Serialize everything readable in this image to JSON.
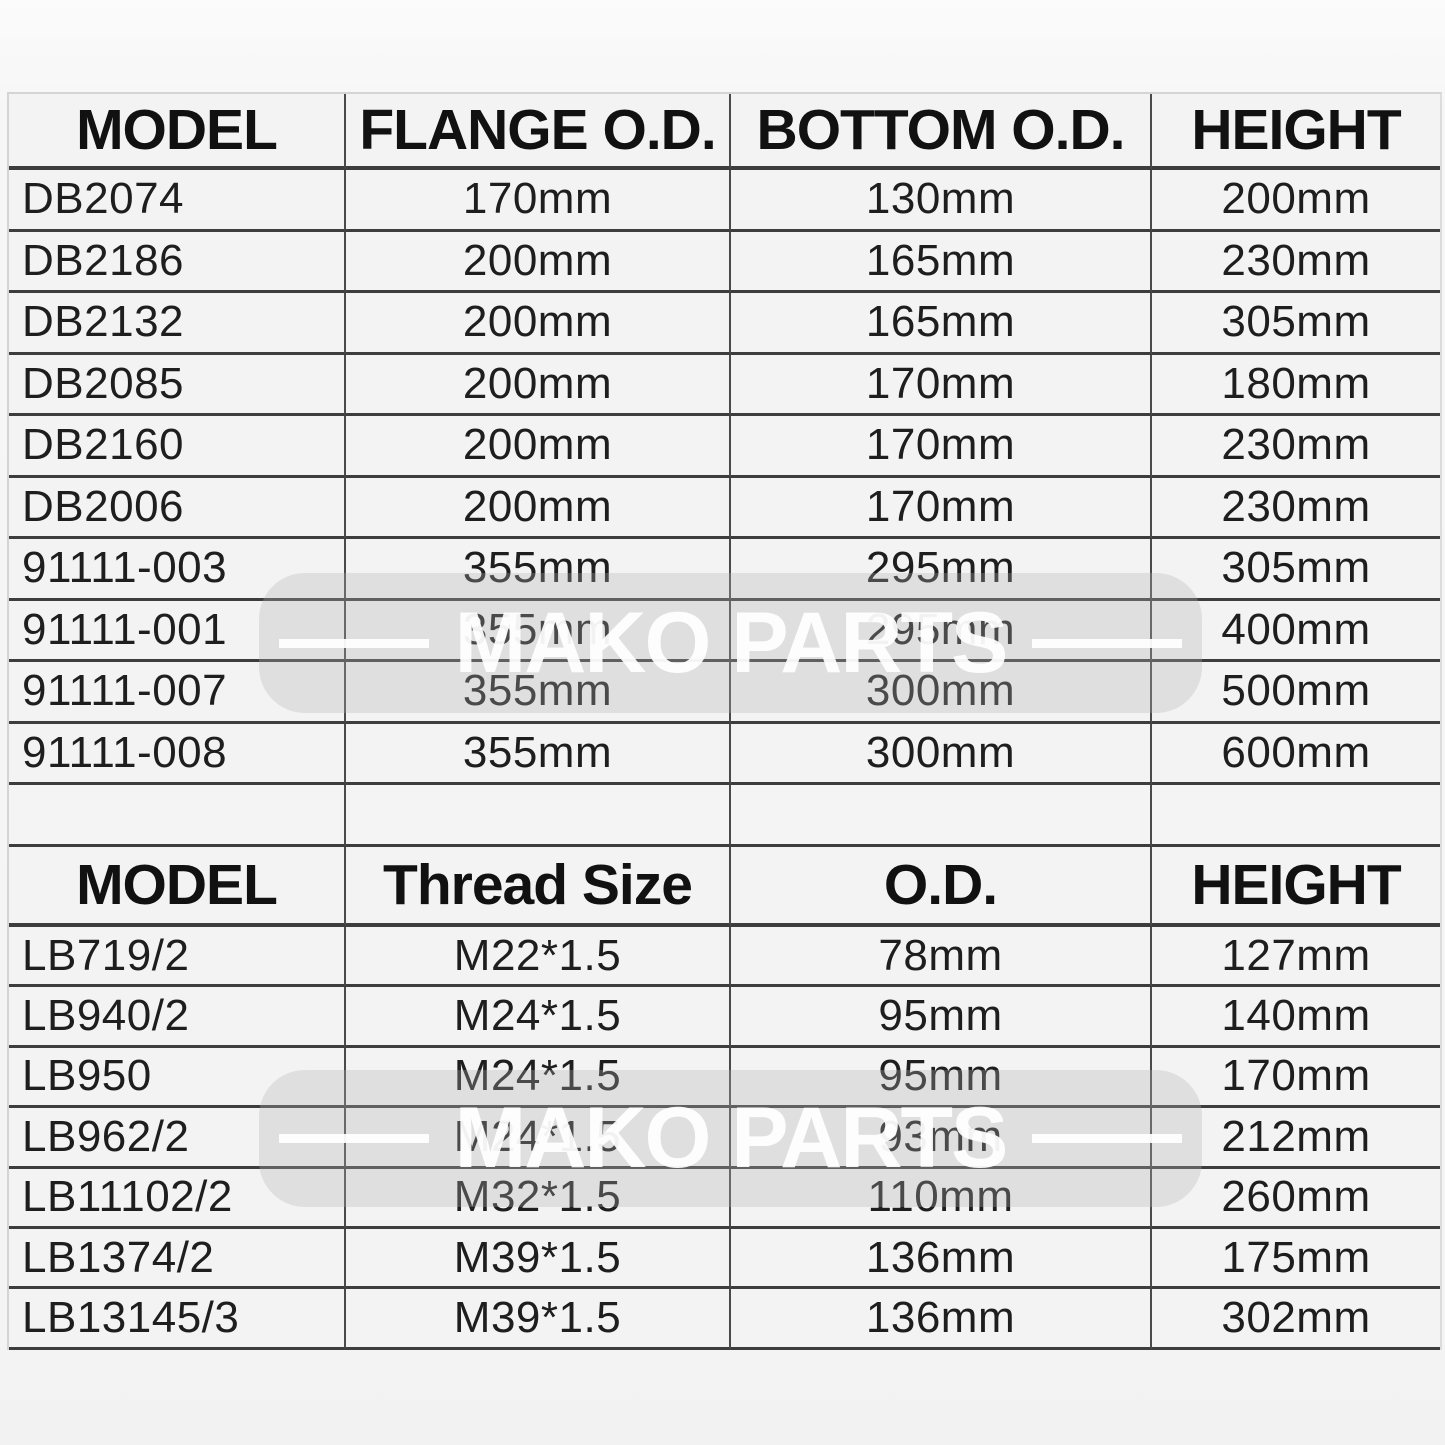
{
  "watermark": {
    "text": "MAKO PARTS"
  },
  "colors": {
    "line_dark": "#3d3d3d",
    "line_light": "#d4d4d4",
    "cell_bg": "#f3f3f3",
    "text": "#1e1e1e",
    "watermark_bg": "#e2e2e2",
    "watermark_text": "#ffffff"
  },
  "tables": [
    {
      "name": "flange-dimensions-table",
      "headers": [
        "MODEL",
        "FLANGE O.D.",
        "BOTTOM O.D.",
        "HEIGHT"
      ],
      "rows": [
        [
          "DB2074",
          "170mm",
          "130mm",
          "200mm"
        ],
        [
          "DB2186",
          "200mm",
          "165mm",
          "230mm"
        ],
        [
          "DB2132",
          "200mm",
          "165mm",
          "305mm"
        ],
        [
          "DB2085",
          "200mm",
          "170mm",
          "180mm"
        ],
        [
          "DB2160",
          "200mm",
          "170mm",
          "230mm"
        ],
        [
          "DB2006",
          "200mm",
          "170mm",
          "230mm"
        ],
        [
          "91111-003",
          "355mm",
          "295mm",
          "305mm"
        ],
        [
          "91111-001",
          "355mm",
          "295mm",
          "400mm"
        ],
        [
          "91111-007",
          "355mm",
          "300mm",
          "500mm"
        ],
        [
          "91111-008",
          "355mm",
          "300mm",
          "600mm"
        ]
      ]
    },
    {
      "name": "thread-dimensions-table",
      "headers": [
        "MODEL",
        "Thread Size",
        "O.D.",
        "HEIGHT"
      ],
      "rows": [
        [
          "LB719/2",
          "M22*1.5",
          "78mm",
          "127mm"
        ],
        [
          "LB940/2",
          "M24*1.5",
          "95mm",
          "140mm"
        ],
        [
          "LB950",
          "M24*1.5",
          "95mm",
          "170mm"
        ],
        [
          "LB962/2",
          "M24*1.5",
          "93mm",
          "212mm"
        ],
        [
          "LB11102/2",
          "M32*1.5",
          "110mm",
          "260mm"
        ],
        [
          "LB1374/2",
          "M39*1.5",
          "136mm",
          "175mm"
        ],
        [
          "LB13145/3",
          "M39*1.5",
          "136mm",
          "302mm"
        ]
      ]
    }
  ]
}
